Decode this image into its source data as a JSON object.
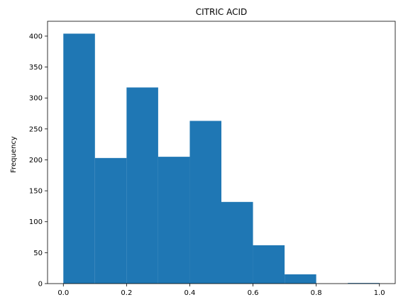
{
  "chart_data": {
    "type": "bar",
    "title": "CITRIC ACID",
    "xlabel": "",
    "ylabel": "Frequency",
    "bins": [
      {
        "x0": 0.0,
        "x1": 0.1,
        "count": 404
      },
      {
        "x0": 0.1,
        "x1": 0.2,
        "count": 203
      },
      {
        "x0": 0.2,
        "x1": 0.3,
        "count": 317
      },
      {
        "x0": 0.3,
        "x1": 0.4,
        "count": 205
      },
      {
        "x0": 0.4,
        "x1": 0.5,
        "count": 263
      },
      {
        "x0": 0.5,
        "x1": 0.6,
        "count": 132
      },
      {
        "x0": 0.6,
        "x1": 0.7,
        "count": 62
      },
      {
        "x0": 0.7,
        "x1": 0.8,
        "count": 15
      },
      {
        "x0": 0.8,
        "x1": 0.9,
        "count": 0
      },
      {
        "x0": 0.9,
        "x1": 1.0,
        "count": 1
      }
    ],
    "xlim": [
      -0.05,
      1.05
    ],
    "ylim": [
      0,
      424
    ],
    "xticks": [
      0.0,
      0.2,
      0.4,
      0.6,
      0.8,
      1.0
    ],
    "xtick_labels": [
      "0.0",
      "0.2",
      "0.4",
      "0.6",
      "0.8",
      "1.0"
    ],
    "yticks": [
      0,
      50,
      100,
      150,
      200,
      250,
      300,
      350,
      400
    ],
    "ytick_labels": [
      "0",
      "50",
      "100",
      "150",
      "200",
      "250",
      "300",
      "350",
      "400"
    ],
    "grid": false,
    "legend": "none",
    "bar_color": "#1f77b4"
  }
}
